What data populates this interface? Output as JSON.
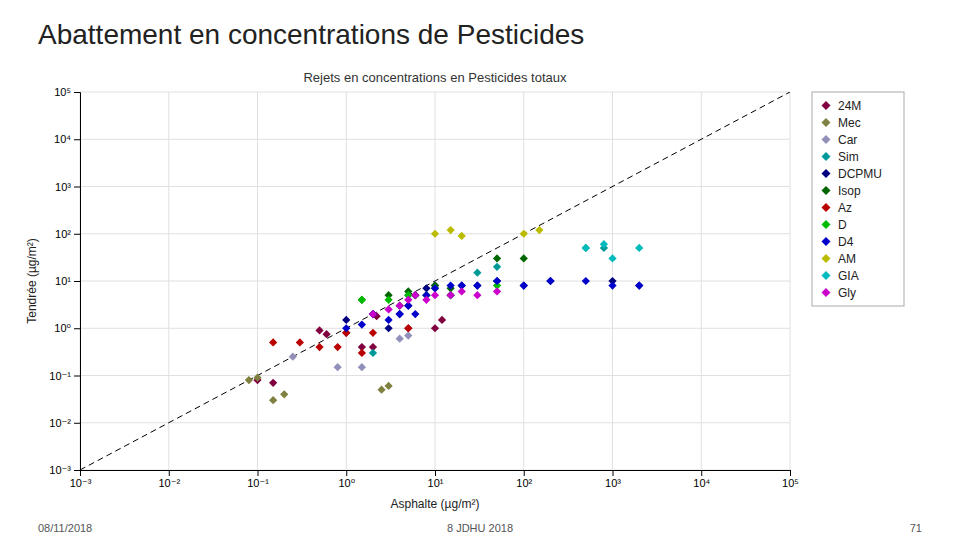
{
  "chart_data": {
    "type": "scatter",
    "title": "Abattement en concentrations de Pesticides",
    "subtitle": "Rejets en concentrations en Pesticides totaux",
    "x_label": "Asphalte (µg/m²)",
    "y_label": "Tendrée (µg/m²)",
    "annotations": [
      "08/11/2018",
      "8 JDHU 2018",
      "71"
    ],
    "log": true,
    "grid": true,
    "legend": "right",
    "xlim": [
      0.001,
      100000
    ],
    "ylim": [
      0.001,
      100000
    ],
    "xticks": [
      {
        "value": 0.001,
        "label": "10⁻³"
      },
      {
        "value": 0.01,
        "label": "10⁻²"
      },
      {
        "value": 0.1,
        "label": "10⁻¹"
      },
      {
        "value": 1,
        "label": "10⁰"
      },
      {
        "value": 10,
        "label": "10¹"
      },
      {
        "value": 100,
        "label": "10²"
      },
      {
        "value": 1000,
        "label": "10³"
      },
      {
        "value": 10000,
        "label": "10⁴"
      },
      {
        "value": 100000,
        "label": "10⁵"
      }
    ],
    "yticks": [
      {
        "value": 0.001,
        "label": "10⁻³"
      },
      {
        "value": 0.01,
        "label": "10⁻²"
      },
      {
        "value": 0.1,
        "label": "10⁻¹"
      },
      {
        "value": 1,
        "label": "10⁰"
      },
      {
        "value": 10,
        "label": "10¹"
      },
      {
        "value": 100,
        "label": "10²"
      },
      {
        "value": 1000,
        "label": "10³"
      },
      {
        "value": 10000,
        "label": "10⁴"
      },
      {
        "value": 100000,
        "label": "10⁵"
      }
    ],
    "series": [
      {
        "name": "24M",
        "color": "#800040",
        "marker": "diamond",
        "x": [
          0.1,
          0.15,
          0.5,
          0.6,
          1.0,
          1.5,
          2.0,
          2.2,
          5.0,
          10.0,
          12.0
        ],
        "values": [
          0.08,
          0.07,
          0.9,
          0.75,
          0.8,
          0.4,
          0.4,
          1.8,
          1.0,
          1.0,
          1.5
        ]
      },
      {
        "name": "Mec",
        "color": "#808040",
        "marker": "diamond",
        "x": [
          0.08,
          0.1,
          0.15,
          0.2,
          2.5,
          3.0
        ],
        "values": [
          0.08,
          0.09,
          0.03,
          0.04,
          0.05,
          0.06
        ]
      },
      {
        "name": "Car",
        "color": "#9090BB",
        "marker": "diamond",
        "x": [
          0.25,
          0.8,
          1.5,
          4.0,
          5.0
        ],
        "values": [
          0.25,
          0.15,
          0.15,
          0.6,
          0.7
        ]
      },
      {
        "name": "Sim",
        "color": "#009999",
        "marker": "diamond",
        "x": [
          2.0,
          5.0,
          30.0,
          50.0,
          500.0,
          800.0
        ],
        "values": [
          0.3,
          5.0,
          15.0,
          20.0,
          50.0,
          50.0
        ]
      },
      {
        "name": "DCPMU",
        "color": "#000080",
        "marker": "diamond",
        "x": [
          1.0,
          2.0,
          3.0,
          4.0,
          5.0,
          6.0,
          8.0,
          10.0,
          15.0,
          20.0,
          30.0,
          50.0,
          100.0,
          200.0,
          1000.0,
          2000.0
        ],
        "values": [
          1.5,
          2.0,
          1.0,
          2.0,
          3.0,
          5.0,
          7.0,
          8.0,
          5.0,
          8.0,
          8.0,
          10.0,
          8.0,
          10.0,
          10.0,
          8.0
        ]
      },
      {
        "name": "Isop",
        "color": "#006600",
        "marker": "diamond",
        "x": [
          1.5,
          3.0,
          4.0,
          5.0,
          6.0,
          8.0,
          10.0,
          15.0,
          50.0,
          100.0
        ],
        "values": [
          4.0,
          5.0,
          3.0,
          6.0,
          5.0,
          5.0,
          8.0,
          7.0,
          30.0,
          30.0
        ]
      },
      {
        "name": "Az",
        "color": "#BB0000",
        "marker": "diamond",
        "x": [
          0.15,
          0.3,
          0.5,
          0.8,
          1.0,
          1.5,
          2.0,
          5.0
        ],
        "values": [
          0.5,
          0.5,
          0.4,
          0.4,
          0.8,
          0.3,
          0.8,
          1.0
        ]
      },
      {
        "name": "D",
        "color": "#00BB00",
        "marker": "diamond",
        "x": [
          1.5,
          3.0,
          5.0,
          8.0,
          10.0,
          15.0,
          50.0
        ],
        "values": [
          4.0,
          4.0,
          5.0,
          5.0,
          7.0,
          5.0,
          8.0
        ]
      },
      {
        "name": "D4",
        "color": "#0000CC",
        "marker": "diamond",
        "x": [
          1.0,
          1.5,
          2.0,
          3.0,
          4.0,
          5.0,
          6.0,
          8.0,
          10.0,
          15.0,
          20.0,
          30.0,
          50.0,
          100.0,
          200.0,
          500.0,
          1000.0,
          2000.0
        ],
        "values": [
          1.0,
          1.2,
          2.0,
          1.5,
          2.0,
          3.0,
          2.0,
          5.0,
          7.0,
          8.0,
          8.0,
          8.0,
          10.0,
          8.0,
          10.0,
          10.0,
          8.0,
          8.0
        ]
      },
      {
        "name": "AM",
        "color": "#BBBB00",
        "marker": "diamond",
        "x": [
          10.0,
          15.0,
          20.0,
          100.0,
          150.0
        ],
        "values": [
          100.0,
          120.0,
          90.0,
          100.0,
          120.0
        ]
      },
      {
        "name": "GIA",
        "color": "#00BBBB",
        "marker": "diamond",
        "x": [
          500.0,
          800.0,
          1000.0,
          2000.0
        ],
        "values": [
          50.0,
          60.0,
          30.0,
          50.0
        ]
      },
      {
        "name": "Gly",
        "color": "#CC00CC",
        "marker": "diamond",
        "x": [
          2.0,
          3.0,
          4.0,
          5.0,
          6.0,
          8.0,
          10.0,
          15.0,
          20.0,
          30.0,
          50.0
        ],
        "values": [
          2.0,
          2.5,
          3.0,
          4.0,
          5.0,
          4.0,
          5.0,
          5.0,
          6.0,
          5.0,
          6.0
        ]
      },
      {
        "type": "line",
        "line_style": "dashed",
        "color": "#000000",
        "x": [
          0.001,
          100000
        ],
        "values": [
          0.001,
          100000
        ]
      }
    ]
  }
}
